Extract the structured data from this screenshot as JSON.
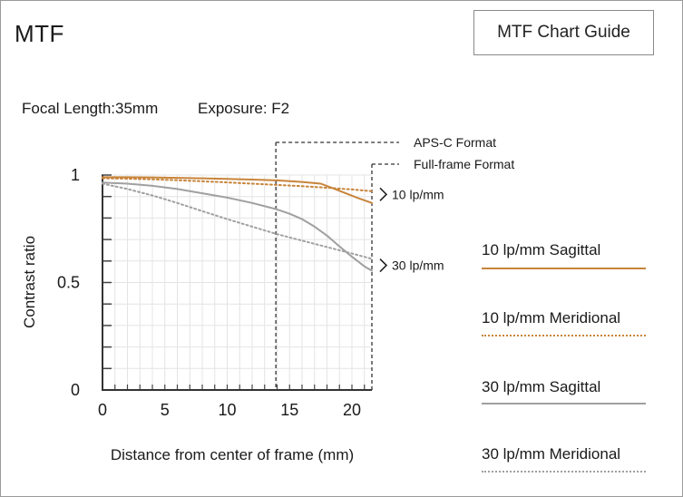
{
  "header": {
    "title": "MTF",
    "guide_button_label": "MTF Chart Guide"
  },
  "specs": {
    "focal_length": "Focal Length:35mm",
    "exposure": "Exposure: F2"
  },
  "legend": [
    {
      "label": "10 lp/mm Sagittal",
      "color": "#c8843a",
      "style": "solid"
    },
    {
      "label": "10 lp/mm Meridional",
      "color": "#c8843a",
      "style": "dotted"
    },
    {
      "label": "30 lp/mm Sagittal",
      "color": "#a0a0a0",
      "style": "solid"
    },
    {
      "label": "30 lp/mm Meridional",
      "color": "#a0a0a0",
      "style": "dotted"
    }
  ],
  "chart_data": {
    "type": "line",
    "xlabel": "Distance from center of frame (mm)",
    "ylabel": "Contrast ratio",
    "xlim": [
      0,
      21.6
    ],
    "ylim": [
      0,
      1
    ],
    "x_ticks": [
      0,
      5,
      10,
      15,
      20
    ],
    "y_tick_labels": [
      {
        "value": 0,
        "label": "0"
      },
      {
        "value": 0.5,
        "label": "0.5"
      },
      {
        "value": 1,
        "label": "1"
      }
    ],
    "y_minor_step": 0.1,
    "grid": true,
    "format_markers": [
      {
        "label": "APS-C Format",
        "x": 13.9
      },
      {
        "label": "Full-frame Format",
        "x": 21.6
      }
    ],
    "group_labels": [
      {
        "label": "10 lp/mm",
        "y": 0.91
      },
      {
        "label": "30 lp/mm",
        "y": 0.58
      }
    ],
    "series": [
      {
        "name": "10 lp/mm Sagittal",
        "color": "#c8843a",
        "style": "solid",
        "x": [
          0,
          2,
          4,
          6,
          8,
          10,
          12,
          14,
          16,
          17.5,
          18.5,
          19.5,
          20.5,
          21.6
        ],
        "y": [
          0.99,
          0.99,
          0.989,
          0.987,
          0.985,
          0.982,
          0.979,
          0.975,
          0.968,
          0.96,
          0.938,
          0.915,
          0.893,
          0.87
        ]
      },
      {
        "name": "10 lp/mm Meridional",
        "color": "#c8843a",
        "style": "dotted",
        "x": [
          0,
          2,
          4,
          6,
          8,
          10,
          12,
          14,
          16,
          18,
          20,
          21.6
        ],
        "y": [
          0.985,
          0.983,
          0.98,
          0.976,
          0.971,
          0.966,
          0.96,
          0.954,
          0.948,
          0.941,
          0.933,
          0.925
        ]
      },
      {
        "name": "30 lp/mm Sagittal",
        "color": "#a0a0a0",
        "style": "solid",
        "x": [
          0,
          2,
          4,
          6,
          8,
          10,
          12,
          14,
          15,
          16,
          17,
          18,
          19,
          20,
          21,
          21.6
        ],
        "y": [
          0.965,
          0.96,
          0.95,
          0.935,
          0.915,
          0.895,
          0.87,
          0.84,
          0.82,
          0.795,
          0.76,
          0.718,
          0.668,
          0.62,
          0.575,
          0.555
        ]
      },
      {
        "name": "30 lp/mm Meridional",
        "color": "#a0a0a0",
        "style": "dotted",
        "x": [
          0,
          2,
          4,
          6,
          8,
          10,
          12,
          14,
          16,
          18,
          20,
          21.6
        ],
        "y": [
          0.96,
          0.935,
          0.905,
          0.87,
          0.832,
          0.795,
          0.76,
          0.725,
          0.695,
          0.665,
          0.635,
          0.61
        ]
      }
    ]
  }
}
